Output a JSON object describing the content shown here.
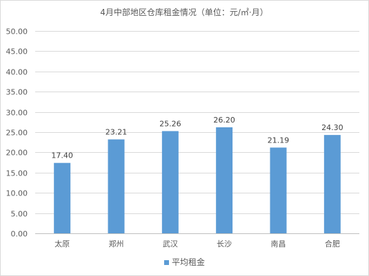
{
  "chart_data": {
    "type": "bar",
    "title": "4月中部地区仓库租金情况（单位：元/㎡·月）",
    "categories": [
      "太原",
      "郑州",
      "武汉",
      "长沙",
      "南昌",
      "合肥"
    ],
    "series": [
      {
        "name": "平均租金",
        "values": [
          17.4,
          23.21,
          25.26,
          26.2,
          21.19,
          24.3
        ],
        "labels": [
          "17.40",
          "23.21",
          "25.26",
          "26.20",
          "21.19",
          "24.30"
        ],
        "color": "#5b9bd5"
      }
    ],
    "ylim": [
      0,
      50
    ],
    "yticks": [
      "0.00",
      "5.00",
      "10.00",
      "15.00",
      "20.00",
      "25.00",
      "30.00",
      "35.00",
      "40.00",
      "45.00",
      "50.00"
    ],
    "grid": true,
    "legend_position": "bottom"
  }
}
